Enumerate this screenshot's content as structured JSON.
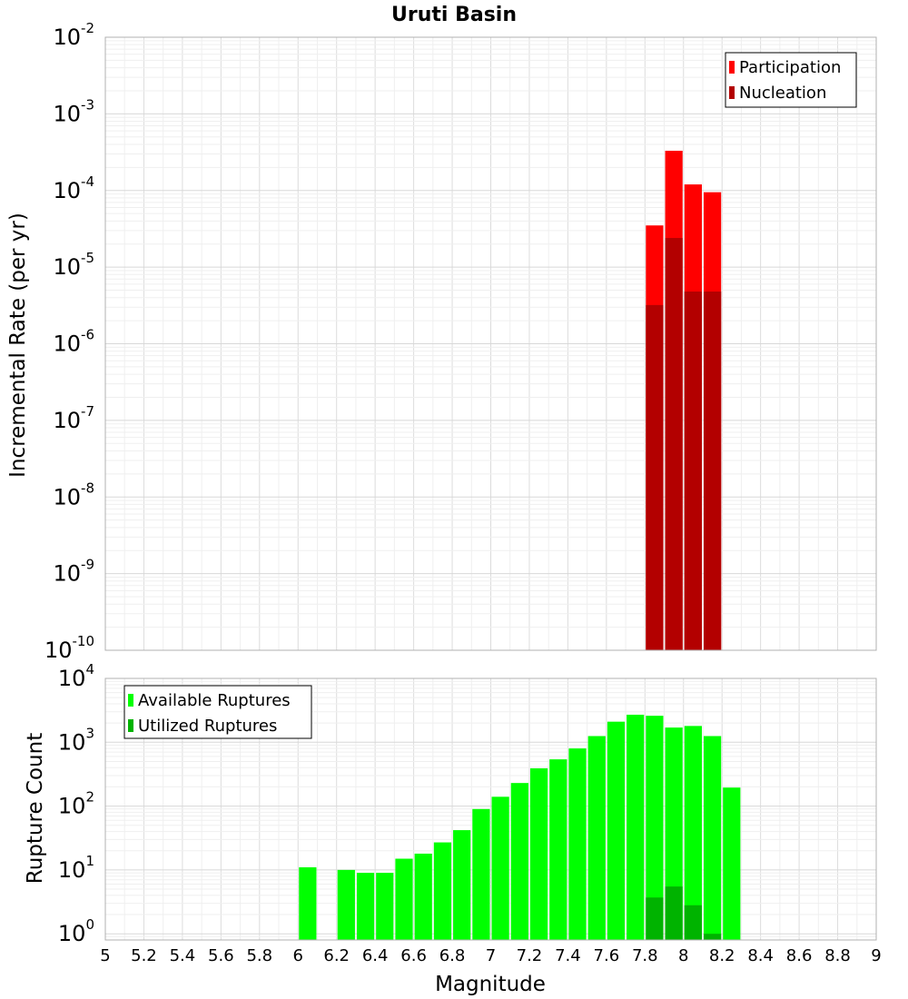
{
  "chart_title": "Uruti Basin",
  "chart_data": [
    {
      "type": "bar",
      "ylabel": "Incremental Rate (per yr)",
      "yscale": "log",
      "ylim": [
        1e-10,
        0.01
      ],
      "y_ticks": [
        {
          "base": "10",
          "exp": "-2",
          "v": 0.01
        },
        {
          "base": "10",
          "exp": "-3",
          "v": 0.001
        },
        {
          "base": "10",
          "exp": "-4",
          "v": 0.0001
        },
        {
          "base": "10",
          "exp": "-5",
          "v": 1e-05
        },
        {
          "base": "10",
          "exp": "-6",
          "v": 1e-06
        },
        {
          "base": "10",
          "exp": "-7",
          "v": 1e-07
        },
        {
          "base": "10",
          "exp": "-8",
          "v": 1e-08
        },
        {
          "base": "10",
          "exp": "-9",
          "v": 1e-09
        },
        {
          "base": "10",
          "exp": "-10",
          "v": 1e-10
        }
      ],
      "xlim": [
        5,
        9
      ],
      "grid": true,
      "legend_position": "top-right",
      "series": [
        {
          "name": "Participation",
          "color": "#ff0000",
          "x": [
            7.85,
            7.95,
            8.05,
            8.15
          ],
          "values": [
            3.5e-05,
            0.00033,
            0.00012,
            9.5e-05
          ]
        },
        {
          "name": "Nucleation",
          "color": "#b30000",
          "x": [
            7.85,
            7.95,
            8.05,
            8.15
          ],
          "values": [
            3.2e-06,
            2.4e-05,
            4.8e-06,
            4.8e-06
          ]
        }
      ]
    },
    {
      "type": "bar",
      "xlabel": "Magnitude",
      "ylabel": "Rupture Count",
      "yscale": "log",
      "ylim": [
        0.8,
        10000
      ],
      "y_ticks": [
        {
          "base": "10",
          "exp": "4",
          "v": 10000
        },
        {
          "base": "10",
          "exp": "3",
          "v": 1000
        },
        {
          "base": "10",
          "exp": "2",
          "v": 100
        },
        {
          "base": "10",
          "exp": "1",
          "v": 10
        },
        {
          "base": "10",
          "exp": "0",
          "v": 1
        }
      ],
      "xlim": [
        5,
        9
      ],
      "x_tick_labels": [
        "5",
        "5.2",
        "5.4",
        "5.6",
        "5.8",
        "6",
        "6.2",
        "6.4",
        "6.6",
        "6.8",
        "7",
        "7.2",
        "7.4",
        "7.6",
        "7.8",
        "8",
        "8.2",
        "8.4",
        "8.6",
        "8.8",
        "9"
      ],
      "grid": true,
      "legend_position": "top-left",
      "series": [
        {
          "name": "Available Ruptures",
          "color": "#00ff00",
          "x": [
            6.05,
            6.25,
            6.35,
            6.45,
            6.55,
            6.65,
            6.75,
            6.85,
            6.95,
            7.05,
            7.15,
            7.25,
            7.35,
            7.45,
            7.55,
            7.65,
            7.75,
            7.85,
            7.95,
            8.05,
            8.15,
            8.25
          ],
          "values": [
            11,
            10,
            9,
            9,
            15,
            18,
            27,
            42,
            90,
            140,
            230,
            390,
            540,
            800,
            1250,
            2100,
            2700,
            2600,
            1700,
            1800,
            1250,
            195
          ]
        },
        {
          "name": "Utilized Ruptures",
          "color": "#00b300",
          "x": [
            7.85,
            7.95,
            8.05,
            8.15
          ],
          "values": [
            3.7,
            5.5,
            2.8,
            1.0
          ]
        }
      ]
    }
  ]
}
